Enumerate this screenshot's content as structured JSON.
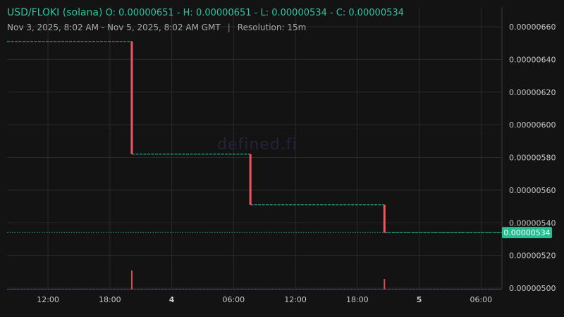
{
  "header": {
    "pair": "USD/FLOKI (solana)",
    "ohlc": "O: 0.00000651 - H: 0.00000651 - L: 0.00000534 - C: 0.00000534",
    "range": "Nov 3, 2025, 8:02 AM - Nov 5, 2025, 8:02 AM GMT",
    "separator": "|",
    "resolution": "Resolution: 15m"
  },
  "watermark": "defined.fi",
  "colors": {
    "background": "#131313",
    "grid": "#2a2a2a",
    "up": "#2ec4a0",
    "down": "#f0545d",
    "text": "#c8c8c8"
  },
  "chart_data": {
    "type": "candlestick",
    "pair": "USD/FLOKI (solana)",
    "resolution": "15m",
    "ylim": [
      5e-06,
      6.7e-06
    ],
    "y_ticks": [
      "0.00000660",
      "0.00000640",
      "0.00000620",
      "0.00000600",
      "0.00000580",
      "0.00000560",
      "0.00000540",
      "0.00000520",
      "0.00000500"
    ],
    "y_tick_values": [
      6.6e-06,
      6.4e-06,
      6.2e-06,
      6e-06,
      5.8e-06,
      5.6e-06,
      5.4e-06,
      5.2e-06,
      5e-06
    ],
    "x_range_hours": [
      0,
      48
    ],
    "x_ticks": [
      {
        "label": "12:00",
        "hour": 3.97,
        "bold": false
      },
      {
        "label": "18:00",
        "hour": 9.97,
        "bold": false
      },
      {
        "label": "4",
        "hour": 15.97,
        "bold": true
      },
      {
        "label": "06:00",
        "hour": 21.97,
        "bold": false
      },
      {
        "label": "12:00",
        "hour": 27.97,
        "bold": false
      },
      {
        "label": "18:00",
        "hour": 33.97,
        "bold": false
      },
      {
        "label": "5",
        "hour": 39.97,
        "bold": true
      },
      {
        "label": "06:00",
        "hour": 45.97,
        "bold": false
      }
    ],
    "last_price_label": "0.00000534",
    "last_price": 5.34e-06,
    "flat_segments": [
      {
        "x0": 0,
        "x1": 12.1,
        "price": 6.51e-06
      },
      {
        "x0": 12.1,
        "x1": 23.6,
        "price": 5.82e-06
      },
      {
        "x0": 23.6,
        "x1": 36.6,
        "price": 5.51e-06
      },
      {
        "x0": 36.6,
        "x1": 48,
        "price": 5.34e-06
      }
    ],
    "candles": [
      {
        "hour": 12.1,
        "open": 6.51e-06,
        "close": 5.82e-06,
        "high": 6.51e-06,
        "low": 5.82e-06
      },
      {
        "hour": 23.6,
        "open": 5.82e-06,
        "close": 5.51e-06,
        "high": 5.82e-06,
        "low": 5.51e-06
      },
      {
        "hour": 36.6,
        "open": 5.51e-06,
        "close": 5.34e-06,
        "high": 5.51e-06,
        "low": 5.34e-06
      }
    ],
    "volume_bars": [
      {
        "hour": 12.1,
        "level": 0.27
      },
      {
        "hour": 36.6,
        "level": 0.15
      }
    ],
    "volume_baseline_level": 0,
    "grid": true
  }
}
